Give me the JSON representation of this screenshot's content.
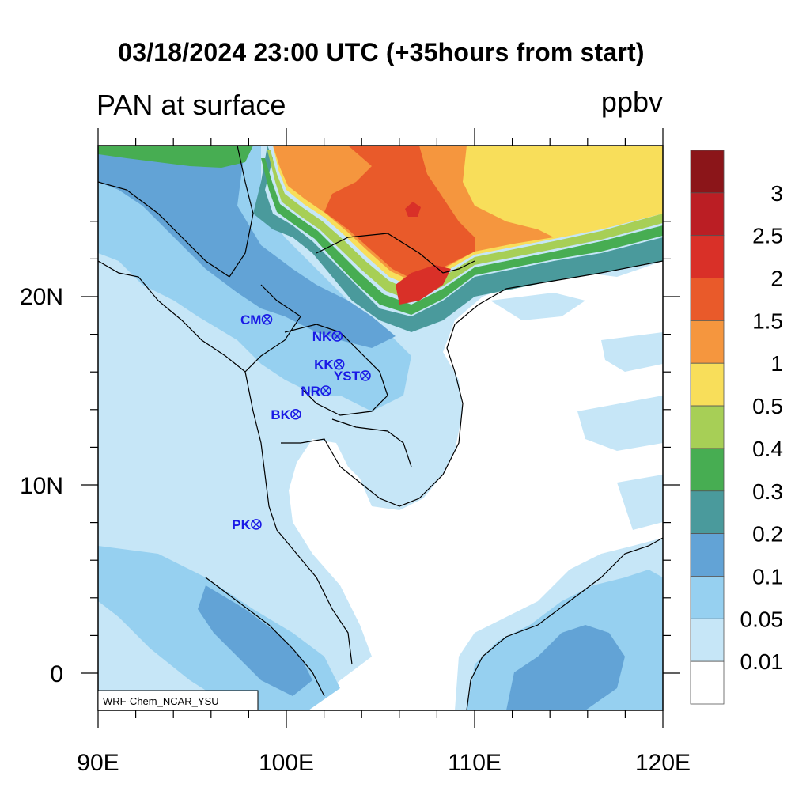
{
  "title": "03/18/2024 23:00 UTC (+35hours from start)",
  "variable_label": "PAN at surface",
  "units": "ppbv",
  "model_label": "WRF-Chem_NCAR_YSU",
  "lon_ticks": [
    "90E",
    "100E",
    "110E",
    "120E"
  ],
  "lat_ticks": [
    "20N",
    "10N",
    "0"
  ],
  "colorbar": {
    "labels": [
      "0.01",
      "0.05",
      "0.1",
      "0.2",
      "0.3",
      "0.4",
      "0.5",
      "1",
      "1.5",
      "2",
      "2.5",
      "3"
    ],
    "colors": [
      "#ffffff",
      "#c6e6f7",
      "#96d0f0",
      "#62a3d6",
      "#4a9a9c",
      "#47ad52",
      "#a7cf56",
      "#f8de5a",
      "#f5963e",
      "#e95a2a",
      "#d93028",
      "#bb1e24",
      "#8b1519"
    ]
  },
  "stations": [
    {
      "name": "CM",
      "lon": 98.97,
      "lat": 18.79
    },
    {
      "name": "NK",
      "lon": 102.7,
      "lat": 17.9
    },
    {
      "name": "KK",
      "lon": 102.8,
      "lat": 16.4
    },
    {
      "name": "YST",
      "lon": 104.2,
      "lat": 15.8
    },
    {
      "name": "NR",
      "lon": 102.1,
      "lat": 15.0
    },
    {
      "name": "BK",
      "lon": 100.5,
      "lat": 13.75
    },
    {
      "name": "PK",
      "lon": 98.4,
      "lat": 7.9
    }
  ],
  "fields": {
    "ocean_color": "#ffffff",
    "land_base_color": "#c6e6f7",
    "coastline_color": "#000000"
  }
}
